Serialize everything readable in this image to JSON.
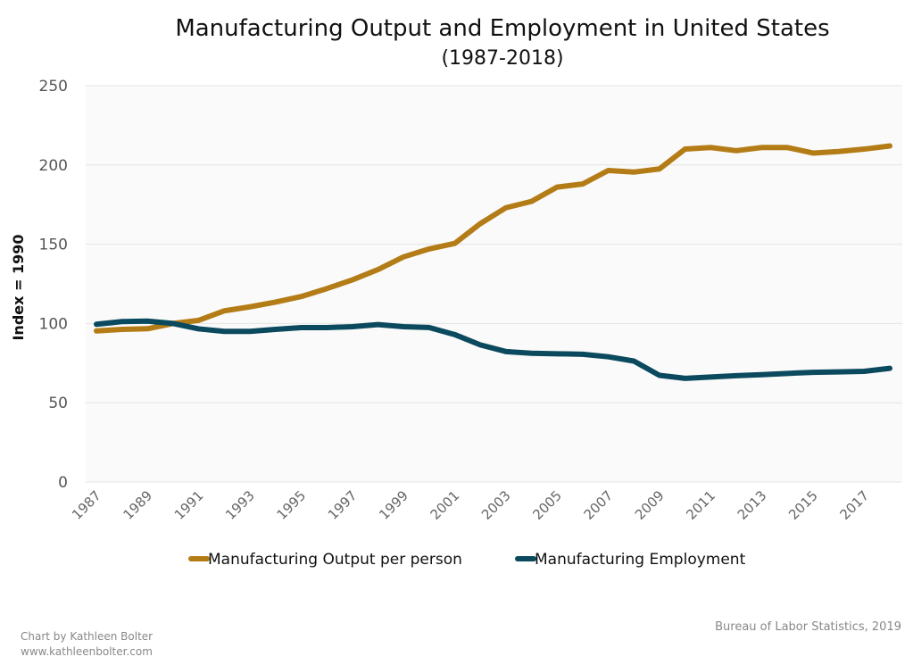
{
  "chart_data": {
    "type": "line",
    "title": "Manufacturing Output and Employment in United States",
    "subtitle": "(1987-2018)",
    "xlabel": "",
    "ylabel": "Index = 1990",
    "ylim": [
      0,
      250
    ],
    "yticks": [
      0,
      50,
      100,
      150,
      200,
      250
    ],
    "ytick_labels": [
      "0",
      "50",
      "100",
      "150",
      "200",
      "250"
    ],
    "x": [
      1987,
      1988,
      1989,
      1990,
      1991,
      1992,
      1993,
      1994,
      1995,
      1996,
      1997,
      1998,
      1999,
      2000,
      2001,
      2002,
      2003,
      2004,
      2005,
      2006,
      2007,
      2008,
      2009,
      2010,
      2011,
      2012,
      2013,
      2014,
      2015,
      2016,
      2017,
      2018
    ],
    "xtick_labels": [
      "1987",
      "1989",
      "1991",
      "1993",
      "1995",
      "1997",
      "1999",
      "2001",
      "2003",
      "2005",
      "2007",
      "2009",
      "2011",
      "2013",
      "2015",
      "2017"
    ],
    "grid": true,
    "legend_position": "bottom-center",
    "series": [
      {
        "name": "Manufacturing Output per person",
        "color": "#B47C16",
        "values": [
          95.3,
          96.3,
          96.7,
          100,
          102,
          108,
          110.5,
          113.5,
          117,
          122,
          127.5,
          134,
          142,
          147,
          150.5,
          163,
          173,
          177,
          186,
          188,
          196.5,
          195.5,
          197.5,
          210,
          211,
          209,
          211,
          211,
          207.5,
          208.5,
          210,
          212
        ]
      },
      {
        "name": "Manufacturing Employment",
        "color": "#0B4A5E",
        "values": [
          99.5,
          101.2,
          101.5,
          100,
          96.6,
          95,
          95,
          96.3,
          97.4,
          97.4,
          98,
          99.3,
          98,
          97.5,
          93,
          86.5,
          82.3,
          81.2,
          80.9,
          80.6,
          79,
          76.3,
          67.3,
          65.4,
          66.2,
          67.1,
          67.7,
          68.5,
          69.2,
          69.5,
          69.8,
          71.7
        ]
      }
    ]
  },
  "footer": {
    "credit_line1": "Chart by Kathleen Bolter",
    "credit_line2": "www.kathleenbolter.com",
    "source": "Bureau of Labor Statistics, 2019"
  }
}
